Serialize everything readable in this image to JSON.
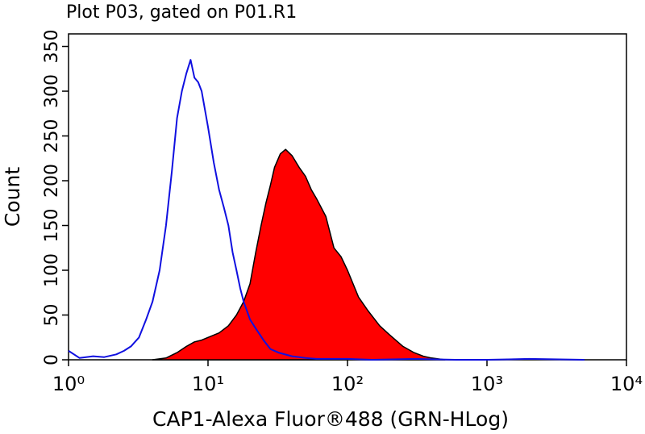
{
  "chart_data": {
    "type": "histogram-overlay",
    "title": "Plot P03, gated on P01.R1",
    "x_label": "CAP1-Alexa Fluor®488 (GRN-HLog)",
    "y_label": "Count",
    "x_scale": "log",
    "xlim": [
      1,
      10000
    ],
    "xticks": [
      {
        "value": 1,
        "label": "10⁰"
      },
      {
        "value": 10,
        "label": "10¹"
      },
      {
        "value": 100,
        "label": "10²"
      },
      {
        "value": 1000,
        "label": "10³"
      },
      {
        "value": 10000,
        "label": "10⁴"
      }
    ],
    "ylim": [
      0,
      364
    ],
    "yticks": [
      0,
      50,
      100,
      150,
      200,
      250,
      300,
      350
    ],
    "series": [
      {
        "color": "#1010e0",
        "fill": "none",
        "x": [
          1,
          1.2,
          1.5,
          1.8,
          2.2,
          2.5,
          2.8,
          3.2,
          3.6,
          4,
          4.5,
          5,
          5.5,
          6,
          6.5,
          7,
          7.5,
          8,
          8.5,
          9,
          10,
          11,
          12,
          13,
          14,
          15,
          16,
          17,
          18,
          20,
          22,
          25,
          28,
          32,
          40,
          50,
          60,
          80,
          100,
          150,
          300,
          600,
          1000,
          2000,
          5000
        ],
        "values": [
          10,
          2,
          4,
          3,
          6,
          10,
          15,
          25,
          45,
          65,
          100,
          150,
          210,
          270,
          300,
          320,
          335,
          315,
          310,
          300,
          260,
          220,
          190,
          170,
          150,
          120,
          100,
          80,
          65,
          45,
          35,
          22,
          12,
          8,
          4,
          2,
          1,
          1,
          1,
          0,
          1,
          0,
          0,
          1,
          0
        ]
      },
      {
        "color": "#ff0000",
        "edge": "#000000",
        "x": [
          4,
          5,
          6,
          7,
          8,
          9,
          10,
          12,
          14,
          16,
          18,
          20,
          22,
          24,
          26,
          28,
          30,
          33,
          36,
          40,
          45,
          50,
          55,
          60,
          70,
          80,
          90,
          100,
          120,
          140,
          170,
          200,
          250,
          300,
          350,
          400,
          500
        ],
        "values": [
          0,
          2,
          8,
          15,
          20,
          22,
          25,
          30,
          38,
          50,
          65,
          85,
          120,
          150,
          175,
          195,
          215,
          230,
          235,
          228,
          215,
          205,
          190,
          180,
          160,
          125,
          115,
          100,
          70,
          55,
          38,
          28,
          15,
          8,
          4,
          2,
          0
        ]
      }
    ]
  }
}
